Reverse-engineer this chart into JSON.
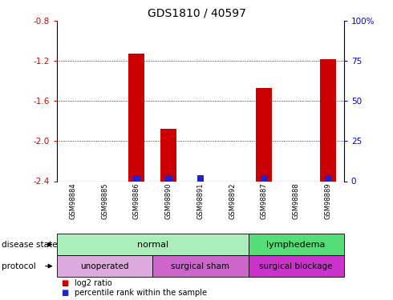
{
  "title": "GDS1810 / 40597",
  "samples": [
    "GSM98884",
    "GSM98885",
    "GSM98886",
    "GSM98890",
    "GSM98891",
    "GSM98892",
    "GSM98887",
    "GSM98888",
    "GSM98889"
  ],
  "log2_ratio": [
    null,
    null,
    -1.13,
    -1.88,
    null,
    null,
    -1.47,
    null,
    -1.18
  ],
  "percentile_rank": [
    null,
    null,
    5,
    4,
    3,
    null,
    5,
    null,
    5
  ],
  "ylim": [
    -2.4,
    -0.8
  ],
  "yticks": [
    -2.4,
    -2.0,
    -1.6,
    -1.2,
    -0.8
  ],
  "right_ylim": [
    0,
    100
  ],
  "right_yticks": [
    0,
    25,
    50,
    75,
    100
  ],
  "right_yticklabels": [
    "0",
    "25",
    "50",
    "75",
    "100%"
  ],
  "bar_color": "#cc0000",
  "blue_color": "#2222cc",
  "disease_state_groups": [
    {
      "label": "normal",
      "start": 0,
      "end": 6,
      "color": "#aaeebb"
    },
    {
      "label": "lymphedema",
      "start": 6,
      "end": 9,
      "color": "#55dd77"
    }
  ],
  "protocol_groups": [
    {
      "label": "unoperated",
      "start": 0,
      "end": 3,
      "color": "#ddaadd"
    },
    {
      "label": "surgical sham",
      "start": 3,
      "end": 6,
      "color": "#cc66cc"
    },
    {
      "label": "surgical blockage",
      "start": 6,
      "end": 9,
      "color": "#cc33cc"
    }
  ],
  "bar_width": 0.5,
  "left_tick_color": "#cc0000",
  "right_tick_color": "#0000cc",
  "sample_bg_color": "#cccccc",
  "sample_divider_color": "#aaaaaa"
}
